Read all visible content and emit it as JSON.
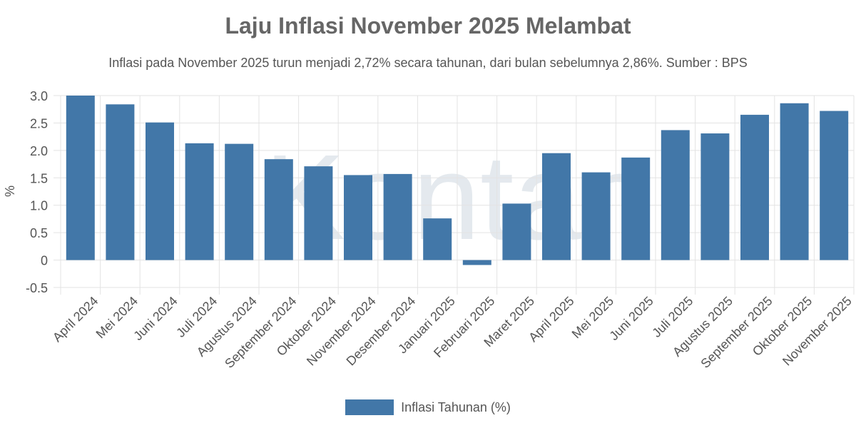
{
  "chart_data": {
    "type": "bar",
    "title": "Laju Inflasi November 2025 Melambat",
    "subtitle": "Inflasi pada November 2025 turun menjadi 2,72% secara tahunan, dari bulan sebelumnya 2,86%. Sumber : BPS",
    "xlabel": "",
    "ylabel": "%",
    "ylim": [
      -0.5,
      3.0
    ],
    "yticks": [
      3.0,
      2.5,
      2.0,
      1.5,
      1.0,
      0.5,
      0,
      -0.5
    ],
    "ytick_labels": [
      "3.0",
      "2.5",
      "2.0",
      "1.5",
      "1.0",
      "0.5",
      "0",
      "-0.5"
    ],
    "grid": true,
    "legend_position": "bottom",
    "categories": [
      "April 2024",
      "Mei 2024",
      "Juni 2024",
      "Juli 2024",
      "Agustus 2024",
      "September 2024",
      "Oktober 2024",
      "November 2024",
      "Desember 2024",
      "Januari 2025",
      "Februari 2025",
      "Maret 2025",
      "April 2025",
      "Mei 2025",
      "Juni 2025",
      "Juli 2025",
      "Agustus 2025",
      "September 2025",
      "Oktober 2025",
      "November 2025"
    ],
    "series": [
      {
        "name": "Inflasi Tahunan (%)",
        "color": "#4277a8",
        "values": [
          3.0,
          2.84,
          2.51,
          2.13,
          2.12,
          1.84,
          1.71,
          1.55,
          1.57,
          0.76,
          -0.09,
          1.03,
          1.95,
          1.6,
          1.87,
          2.37,
          2.31,
          2.65,
          2.86,
          2.72
        ]
      }
    ]
  },
  "watermark": "Kontan"
}
